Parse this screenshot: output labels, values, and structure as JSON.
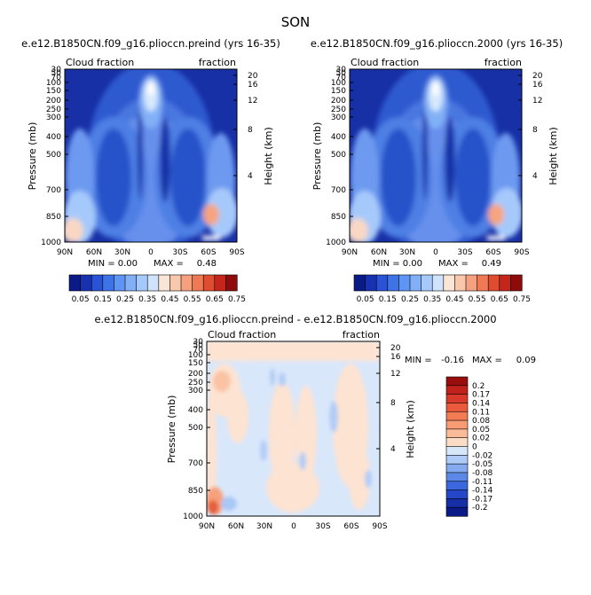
{
  "page": {
    "season": "SON"
  },
  "colors": {
    "outline": "#000000"
  },
  "chart_data": [
    {
      "type": "heatmap",
      "title": "e.e12.B1850CN.f09_g16.plioccn.preind (yrs 16-35)",
      "variable": "Cloud fraction",
      "units": "fraction",
      "xlabel": "",
      "ylabel": "Pressure (mb)",
      "y2label": "Height (km)",
      "x_ticks": [
        "90N",
        "60N",
        "30N",
        "0",
        "30S",
        "60S",
        "90S"
      ],
      "pressure_ticks": [
        1000,
        850,
        700,
        500,
        400,
        300,
        250,
        200,
        150,
        100,
        70,
        50,
        30
      ],
      "height_ticks": [
        4,
        8,
        12,
        16,
        20
      ],
      "stats": {
        "min_label": "MIN =",
        "min": "0.00",
        "max_label": "MAX =",
        "max": "0.48"
      },
      "colorbar": {
        "orientation": "horizontal",
        "levels": [
          "0.05",
          "0.15",
          "0.25",
          "0.35",
          "0.45",
          "0.55",
          "0.65",
          "0.75"
        ],
        "colors": [
          "#0a1a86",
          "#1731b0",
          "#2952d6",
          "#3e73e8",
          "#5e94f3",
          "#82b0f7",
          "#a6c9fb",
          "#d0e3fc",
          "#fbe5d6",
          "#f9c7ac",
          "#f5a17f",
          "#ef7955",
          "#e04c2f",
          "#c5261b",
          "#8e0b0b"
        ]
      }
    },
    {
      "type": "heatmap",
      "title": "e.e12.B1850CN.f09_g16.plioccn.2000 (yrs 16-35)",
      "variable": "Cloud fraction",
      "units": "fraction",
      "xlabel": "",
      "ylabel": "Pressure (mb)",
      "y2label": "Height (km)",
      "x_ticks": [
        "90N",
        "60N",
        "30N",
        "0",
        "30S",
        "60S",
        "90S"
      ],
      "pressure_ticks": [
        1000,
        850,
        700,
        500,
        400,
        300,
        250,
        200,
        150,
        100,
        70,
        50,
        30
      ],
      "height_ticks": [
        4,
        8,
        12,
        16,
        20
      ],
      "stats": {
        "min_label": "MIN =",
        "min": "0.00",
        "max_label": "MAX =",
        "max": "0.49"
      },
      "colorbar": {
        "orientation": "horizontal",
        "levels": [
          "0.05",
          "0.15",
          "0.25",
          "0.35",
          "0.45",
          "0.55",
          "0.65",
          "0.75"
        ],
        "colors": [
          "#0a1a86",
          "#1731b0",
          "#2952d6",
          "#3e73e8",
          "#5e94f3",
          "#82b0f7",
          "#a6c9fb",
          "#d0e3fc",
          "#fbe5d6",
          "#f9c7ac",
          "#f5a17f",
          "#ef7955",
          "#e04c2f",
          "#c5261b",
          "#8e0b0b"
        ]
      }
    },
    {
      "type": "heatmap",
      "title": "e.e12.B1850CN.f09_g16.plioccn.preind - e.e12.B1850CN.f09_g16.plioccn.2000",
      "variable": "Cloud fraction",
      "units": "fraction",
      "xlabel": "",
      "ylabel": "Pressure (mb)",
      "y2label": "Height (km)",
      "x_ticks": [
        "90N",
        "60N",
        "30N",
        "0",
        "30S",
        "60S",
        "90S"
      ],
      "pressure_ticks": [
        1000,
        850,
        700,
        500,
        400,
        300,
        250,
        200,
        150,
        100,
        70,
        50,
        30
      ],
      "height_ticks": [
        4,
        8,
        12,
        16,
        20
      ],
      "stats": {
        "min_label": "MIN =",
        "min": "-0.16",
        "max_label": "MAX =",
        "max": "0.09"
      },
      "colorbar": {
        "orientation": "vertical",
        "levels": [
          "0.2",
          "0.17",
          "0.14",
          "0.11",
          "0.08",
          "0.05",
          "0.02",
          "0",
          "-0.02",
          "-0.05",
          "-0.08",
          "-0.11",
          "-0.14",
          "-0.17",
          "-0.2"
        ],
        "colors": [
          "#9a0d0d",
          "#c0221b",
          "#d9392a",
          "#ec5a3c",
          "#f47c55",
          "#f89c74",
          "#fbbb98",
          "#fcdcc4",
          "#d6e6fb",
          "#aecbf7",
          "#84abf0",
          "#5c89e8",
          "#3b68de",
          "#2347c6",
          "#162ea6",
          "#0a1a86"
        ]
      }
    }
  ]
}
